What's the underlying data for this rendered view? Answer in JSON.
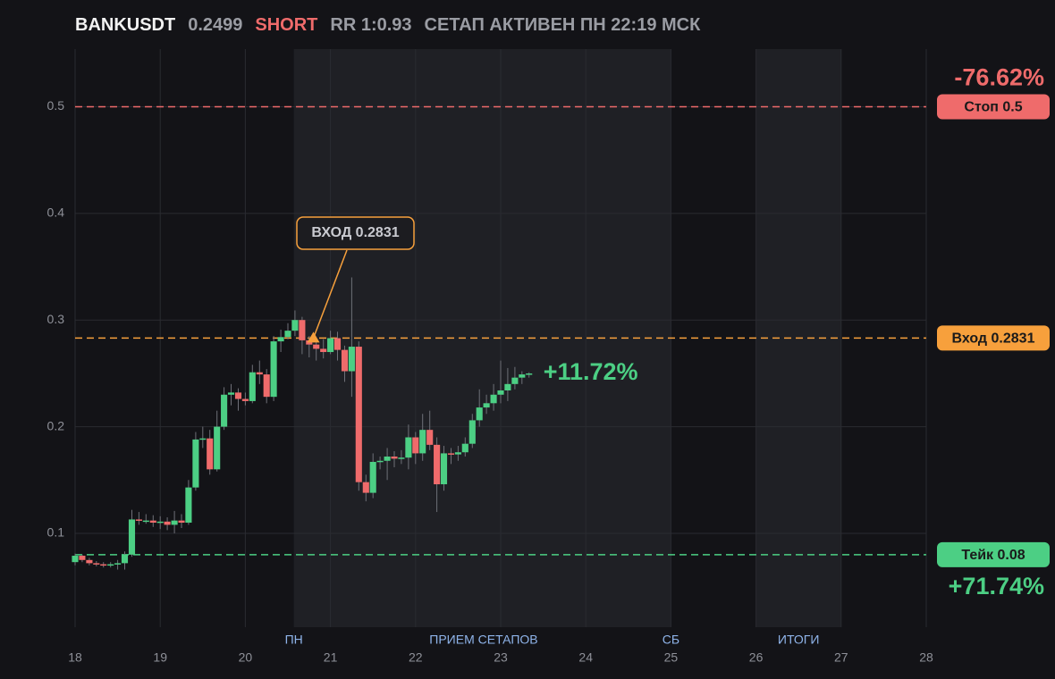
{
  "chart_data": {
    "type": "candlestick",
    "header": {
      "symbol": "BANKUSDT",
      "price": "0.2499",
      "side": "SHORT",
      "rr": "RR 1:0.93",
      "status": "СЕТАП АКТИВЕН ПН 22:19 МСК"
    },
    "xlim": [
      18,
      28
    ],
    "xticks": [
      18,
      19,
      20,
      21,
      22,
      23,
      24,
      25,
      26,
      27,
      28
    ],
    "ylim": [
      0.012,
      0.554
    ],
    "yticks": [
      0.1,
      0.2,
      0.3,
      0.4,
      0.5
    ],
    "grid": true,
    "shaded_regions": [
      [
        20.57,
        25
      ],
      [
        26,
        27
      ]
    ],
    "session_labels": [
      {
        "x": 20.57,
        "label": "ПН"
      },
      {
        "x": 22.8,
        "label": "ПРИЕМ СЕТАПОВ"
      },
      {
        "x": 25,
        "label": "СБ"
      },
      {
        "x": 26.5,
        "label": "ИТОГИ"
      }
    ],
    "up_color": "#4ccf84",
    "down_color": "#ef6b6b",
    "x": [
      18,
      18.083,
      18.167,
      18.25,
      18.333,
      18.417,
      18.5,
      18.583,
      18.667,
      18.75,
      18.833,
      18.917,
      19,
      19.083,
      19.167,
      19.25,
      19.333,
      19.417,
      19.5,
      19.583,
      19.667,
      19.75,
      19.833,
      19.917,
      20,
      20.083,
      20.167,
      20.25,
      20.333,
      20.417,
      20.5,
      20.583,
      20.667,
      20.75,
      20.833,
      20.917,
      21,
      21.083,
      21.167,
      21.25,
      21.333,
      21.417,
      21.5,
      21.583,
      21.667,
      21.75,
      21.833,
      21.917,
      22,
      22.083,
      22.167,
      22.25,
      22.333,
      22.417,
      22.5,
      22.583,
      22.667,
      22.75,
      22.833,
      22.917,
      23,
      23.083,
      23.167,
      23.25,
      23.333
    ],
    "open": [
      0.073,
      0.079,
      0.075,
      0.072,
      0.071,
      0.07,
      0.071,
      0.072,
      0.08,
      0.113,
      0.112,
      0.112,
      0.11,
      0.111,
      0.108,
      0.112,
      0.11,
      0.143,
      0.188,
      0.189,
      0.16,
      0.2,
      0.23,
      0.232,
      0.226,
      0.224,
      0.251,
      0.249,
      0.228,
      0.28,
      0.284,
      0.29,
      0.3,
      0.281,
      0.277,
      0.273,
      0.27,
      0.283,
      0.272,
      0.252,
      0.275,
      0.148,
      0.138,
      0.167,
      0.168,
      0.172,
      0.17,
      0.171,
      0.19,
      0.175,
      0.197,
      0.183,
      0.146,
      0.175,
      0.174,
      0.176,
      0.184,
      0.206,
      0.218,
      0.222,
      0.23,
      0.234,
      0.24,
      0.246,
      0.249
    ],
    "high": [
      0.081,
      0.08,
      0.077,
      0.074,
      0.073,
      0.073,
      0.075,
      0.083,
      0.122,
      0.12,
      0.118,
      0.117,
      0.116,
      0.115,
      0.121,
      0.118,
      0.15,
      0.195,
      0.2,
      0.197,
      0.215,
      0.237,
      0.24,
      0.236,
      0.232,
      0.258,
      0.262,
      0.254,
      0.285,
      0.291,
      0.297,
      0.309,
      0.303,
      0.285,
      0.283,
      0.282,
      0.29,
      0.289,
      0.276,
      0.34,
      0.28,
      0.155,
      0.175,
      0.172,
      0.18,
      0.177,
      0.178,
      0.202,
      0.195,
      0.212,
      0.215,
      0.19,
      0.182,
      0.18,
      0.182,
      0.19,
      0.212,
      0.235,
      0.23,
      0.24,
      0.262,
      0.255,
      0.256,
      0.252,
      0.251
    ],
    "low": [
      0.07,
      0.073,
      0.07,
      0.069,
      0.068,
      0.068,
      0.066,
      0.066,
      0.078,
      0.108,
      0.109,
      0.106,
      0.104,
      0.103,
      0.1,
      0.105,
      0.108,
      0.14,
      0.18,
      0.155,
      0.158,
      0.197,
      0.22,
      0.215,
      0.22,
      0.222,
      0.24,
      0.222,
      0.224,
      0.27,
      0.282,
      0.285,
      0.268,
      0.265,
      0.262,
      0.264,
      0.268,
      0.262,
      0.242,
      0.228,
      0.14,
      0.13,
      0.133,
      0.16,
      0.15,
      0.162,
      0.165,
      0.16,
      0.165,
      0.168,
      0.178,
      0.12,
      0.14,
      0.165,
      0.168,
      0.172,
      0.18,
      0.2,
      0.212,
      0.215,
      0.222,
      0.224,
      0.235,
      0.24,
      0.246
    ],
    "close": [
      0.079,
      0.075,
      0.072,
      0.071,
      0.07,
      0.071,
      0.072,
      0.08,
      0.113,
      0.112,
      0.112,
      0.11,
      0.111,
      0.108,
      0.112,
      0.11,
      0.143,
      0.188,
      0.189,
      0.16,
      0.2,
      0.23,
      0.232,
      0.226,
      0.224,
      0.251,
      0.249,
      0.228,
      0.28,
      0.284,
      0.29,
      0.3,
      0.281,
      0.277,
      0.273,
      0.27,
      0.283,
      0.272,
      0.252,
      0.275,
      0.148,
      0.138,
      0.167,
      0.168,
      0.172,
      0.17,
      0.171,
      0.19,
      0.175,
      0.197,
      0.183,
      0.146,
      0.175,
      0.174,
      0.176,
      0.184,
      0.206,
      0.218,
      0.222,
      0.23,
      0.234,
      0.24,
      0.246,
      0.249,
      0.2499
    ],
    "current_label": "+11.72%",
    "levels": [
      {
        "name": "Стоп 0.5",
        "value": 0.5,
        "color": "#ef6b6b",
        "pct": "-76.62%",
        "pct_side": "above"
      },
      {
        "name": "Вход 0.2831",
        "value": 0.2831,
        "color": "#f7a03c"
      },
      {
        "name": "Тейк 0.08",
        "value": 0.08,
        "color": "#4ccf84",
        "pct": "+71.74%",
        "pct_side": "below"
      }
    ],
    "entry_marker": {
      "x": 20.8,
      "value": 0.2831,
      "label": "ВХОД 0.2831"
    }
  }
}
